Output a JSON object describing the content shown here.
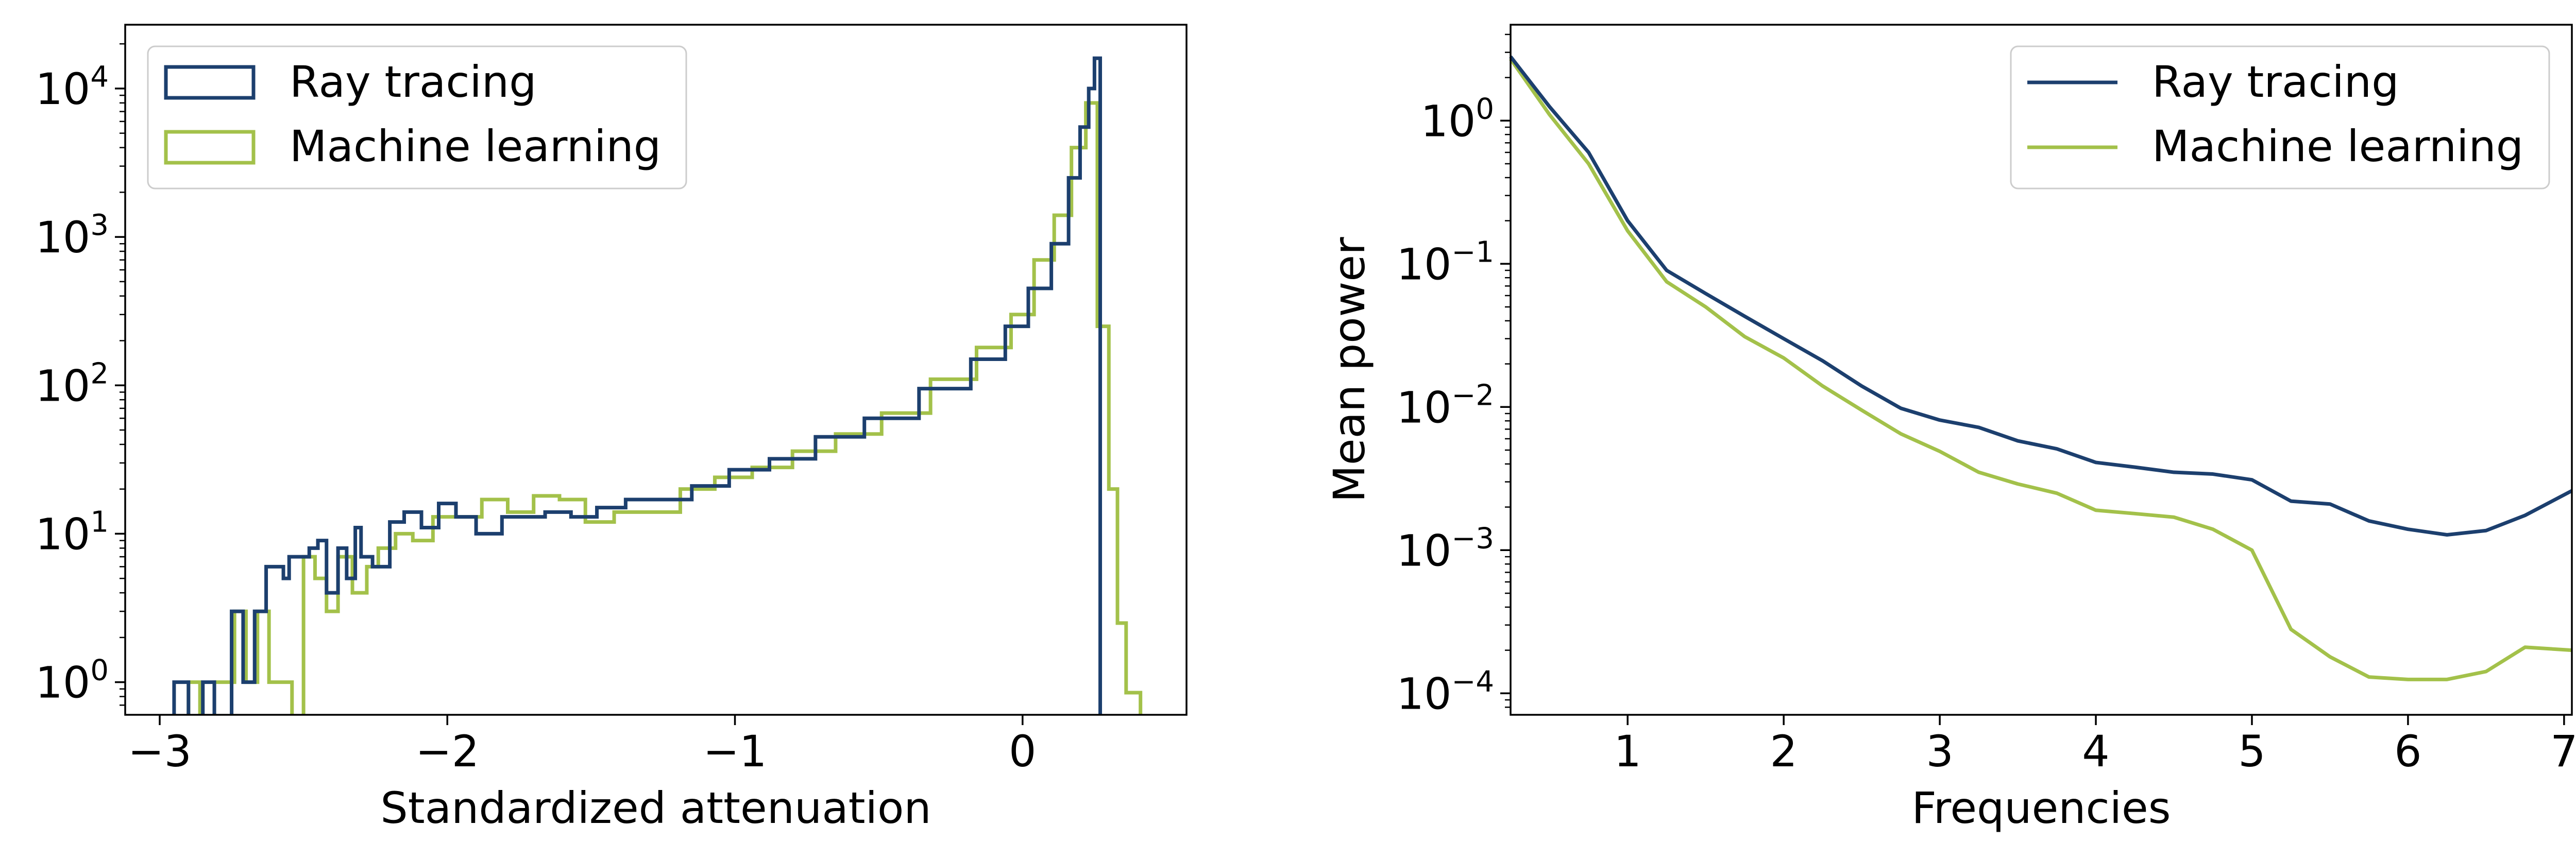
{
  "colors": {
    "ray_tracing": "#1c3f6e",
    "machine_learning": "#a3c14a"
  },
  "chart_data": [
    {
      "type": "histogram",
      "title": "",
      "xlabel": "Standardized attenuation",
      "ylabel": "",
      "xlim": [
        -3.12,
        0.57
      ],
      "ylim_log10": [
        -0.22,
        4.43
      ],
      "yscale": "log",
      "x_ticks": [
        -3,
        -2,
        -1,
        0
      ],
      "x_tick_labels": [
        "−3",
        "−2",
        "−1",
        "0"
      ],
      "y_ticks": [
        1,
        10,
        100,
        1000,
        10000
      ],
      "y_tick_labels": [
        "10",
        "10",
        "10",
        "10",
        "10"
      ],
      "y_tick_exponents": [
        "0",
        "1",
        "2",
        "3",
        "4"
      ],
      "legend": {
        "position": "upper-left",
        "entries": [
          "Ray tracing",
          "Machine learning"
        ]
      },
      "series": [
        {
          "name": "Ray tracing",
          "style": "step",
          "edges": [
            -2.95,
            -2.9,
            -2.85,
            -2.81,
            -2.75,
            -2.71,
            -2.67,
            -2.63,
            -2.6,
            -2.57,
            -2.55,
            -2.48,
            -2.45,
            -2.42,
            -2.38,
            -2.35,
            -2.32,
            -2.3,
            -2.26,
            -2.2,
            -2.15,
            -2.09,
            -2.03,
            -1.97,
            -1.9,
            -1.81,
            -1.74,
            -1.66,
            -1.57,
            -1.48,
            -1.38,
            -1.27,
            -1.15,
            -1.02,
            -0.88,
            -0.72,
            -0.55,
            -0.36,
            -0.18,
            -0.06,
            0.02,
            0.1,
            0.16,
            0.2,
            0.23,
            0.25,
            0.27
          ],
          "counts": [
            1,
            0,
            1,
            0,
            3,
            1,
            3,
            6,
            6,
            5,
            7,
            8,
            9,
            4,
            8,
            5,
            11,
            7,
            6,
            12,
            14,
            11,
            16,
            13,
            10,
            13,
            13,
            14,
            13,
            15,
            17,
            17,
            21,
            27,
            32,
            45,
            60,
            95,
            150,
            250,
            450,
            900,
            2500,
            5500,
            10000,
            16000
          ]
        },
        {
          "name": "Machine learning",
          "style": "step",
          "edges": [
            -2.9,
            -2.86,
            -2.81,
            -2.74,
            -2.7,
            -2.66,
            -2.62,
            -2.58,
            -2.54,
            -2.5,
            -2.46,
            -2.42,
            -2.38,
            -2.33,
            -2.28,
            -2.24,
            -2.18,
            -2.12,
            -2.05,
            -1.97,
            -1.88,
            -1.79,
            -1.7,
            -1.61,
            -1.52,
            -1.42,
            -1.31,
            -1.19,
            -1.07,
            -0.94,
            -0.8,
            -0.65,
            -0.49,
            -0.32,
            -0.16,
            -0.04,
            0.04,
            0.11,
            0.17,
            0.22,
            0.26,
            0.3,
            0.33,
            0.36,
            0.38,
            0.41
          ],
          "counts": [
            1,
            0,
            1,
            3,
            1,
            3,
            1,
            1,
            0,
            7,
            5,
            3,
            7,
            4,
            6,
            8,
            10,
            9,
            13,
            13,
            17,
            14,
            18,
            17,
            12,
            14,
            14,
            20,
            24,
            28,
            36,
            47,
            65,
            110,
            180,
            300,
            700,
            1400,
            4000,
            8000,
            250,
            20,
            2.5,
            0.85,
            0.85
          ]
        }
      ]
    },
    {
      "type": "line",
      "title": "",
      "xlabel": "Frequencies",
      "ylabel": "Mean power",
      "xlim": [
        0.25,
        7.05
      ],
      "ylim_log10": [
        -4.15,
        0.67
      ],
      "yscale": "log",
      "x_ticks": [
        1,
        2,
        3,
        4,
        5,
        6,
        7
      ],
      "x_tick_labels": [
        "1",
        "2",
        "3",
        "4",
        "5",
        "6",
        "7"
      ],
      "y_ticks": [
        0.0001,
        0.001,
        0.01,
        0.1,
        1
      ],
      "y_tick_labels": [
        "10",
        "10",
        "10",
        "10",
        "10"
      ],
      "y_tick_exponents": [
        "−4",
        "−3",
        "−2",
        "−1",
        "0"
      ],
      "legend": {
        "position": "upper-right",
        "entries": [
          "Ray tracing",
          "Machine learning"
        ]
      },
      "x": [
        0.25,
        0.5,
        0.75,
        1.0,
        1.25,
        1.5,
        1.75,
        2.0,
        2.25,
        2.5,
        2.75,
        3.0,
        3.25,
        3.5,
        3.75,
        4.0,
        4.25,
        4.5,
        4.75,
        5.0,
        5.25,
        5.5,
        5.75,
        6.0,
        6.25,
        6.5,
        6.75,
        7.05
      ],
      "series": [
        {
          "name": "Ray tracing",
          "values": [
            2.8,
            1.25,
            0.6,
            0.2,
            0.09,
            0.062,
            0.043,
            0.03,
            0.021,
            0.014,
            0.0098,
            0.0081,
            0.0072,
            0.0058,
            0.0051,
            0.0041,
            0.0038,
            0.0035,
            0.0034,
            0.0031,
            0.0022,
            0.0021,
            0.0016,
            0.0014,
            0.00128,
            0.00137,
            0.00175,
            0.0026
          ]
        },
        {
          "name": "Machine learning",
          "values": [
            2.7,
            1.1,
            0.5,
            0.17,
            0.075,
            0.05,
            0.031,
            0.022,
            0.014,
            0.0095,
            0.0065,
            0.0049,
            0.0035,
            0.0029,
            0.0025,
            0.0019,
            0.0018,
            0.0017,
            0.0014,
            0.001,
            0.00028,
            0.00018,
            0.00013,
            0.000125,
            0.000125,
            0.000142,
            0.00021,
            0.0002
          ]
        }
      ]
    }
  ]
}
